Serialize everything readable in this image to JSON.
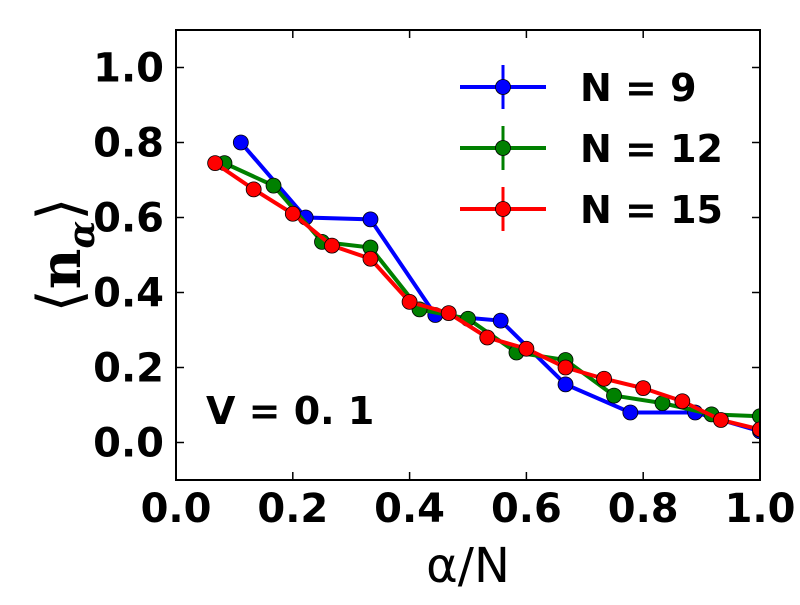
{
  "chart_data": {
    "type": "line",
    "title": "",
    "xlabel": "α/N",
    "ylabel": "⟨n_α⟩",
    "ylabel_main": "n",
    "ylabel_sub": "α",
    "xlim": [
      0.0,
      1.0
    ],
    "ylim": [
      -0.1,
      1.1
    ],
    "xticks": [
      "0.0",
      "0.2",
      "0.4",
      "0.6",
      "0.8",
      "1.0"
    ],
    "yticks": [
      "0.0",
      "0.2",
      "0.4",
      "0.6",
      "0.8",
      "1.0"
    ],
    "annotation": "V = 0. 1",
    "legend_position": "top-right",
    "series": [
      {
        "name": "N = 9",
        "color": "#0000ff",
        "x": [
          0.111,
          0.222,
          0.333,
          0.444,
          0.556,
          0.667,
          0.778,
          0.889,
          1.0
        ],
        "y": [
          0.8,
          0.6,
          0.595,
          0.34,
          0.325,
          0.155,
          0.08,
          0.08,
          0.03
        ]
      },
      {
        "name": "N = 12",
        "color": "#008000",
        "x": [
          0.083,
          0.167,
          0.25,
          0.333,
          0.417,
          0.5,
          0.583,
          0.667,
          0.75,
          0.833,
          0.917,
          1.0
        ],
        "y": [
          0.745,
          0.685,
          0.535,
          0.52,
          0.355,
          0.33,
          0.24,
          0.22,
          0.125,
          0.105,
          0.075,
          0.07
        ]
      },
      {
        "name": "N = 15",
        "color": "#ff0000",
        "x": [
          0.067,
          0.133,
          0.2,
          0.267,
          0.333,
          0.4,
          0.467,
          0.533,
          0.6,
          0.667,
          0.733,
          0.8,
          0.867,
          0.933,
          1.0
        ],
        "y": [
          0.745,
          0.675,
          0.61,
          0.525,
          0.49,
          0.375,
          0.345,
          0.28,
          0.25,
          0.2,
          0.17,
          0.145,
          0.11,
          0.06,
          0.035
        ]
      }
    ]
  }
}
